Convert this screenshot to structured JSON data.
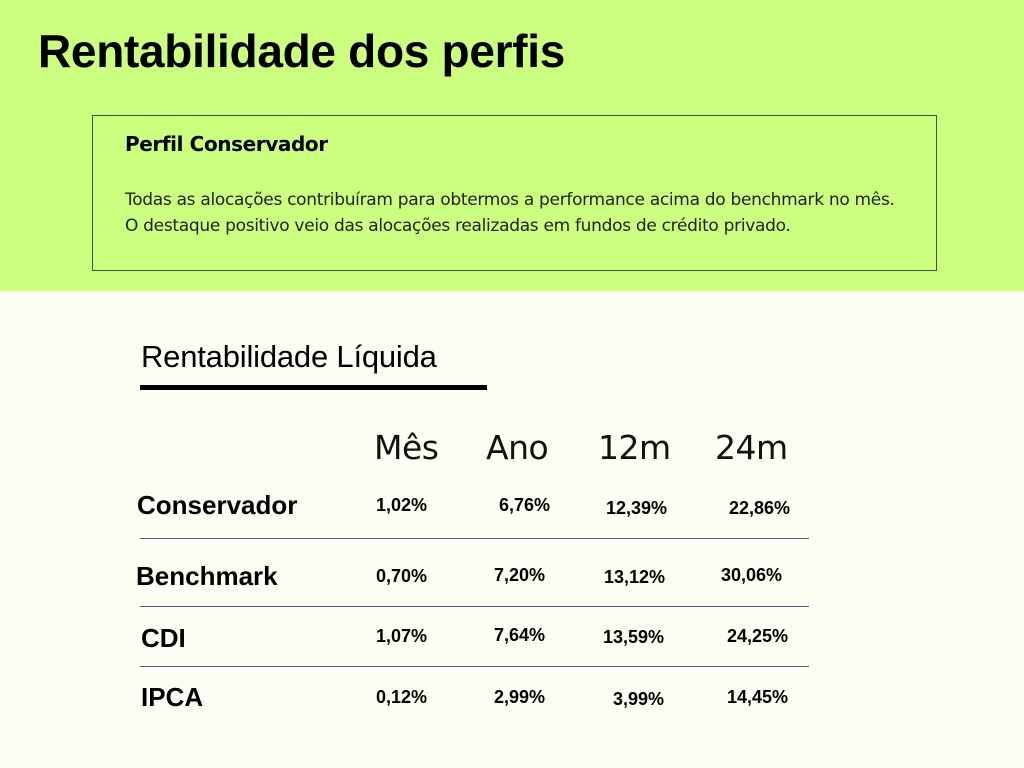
{
  "page": {
    "title": "Rentabilidade dos perfis"
  },
  "profile_box": {
    "heading": "Perfil Conservador",
    "text": "Todas as alocações contribuíram para obtermos a performance acima do benchmark no mês. O destaque positivo veio das alocações realizadas em fundos de crédito privado."
  },
  "section": {
    "title": "Rentabilidade Líquida"
  },
  "table": {
    "columns": [
      "Mês",
      "Ano",
      "12m",
      "24m"
    ],
    "rows": [
      {
        "label": "Conservador",
        "values": [
          "1,02%",
          "6,76%",
          "12,39%",
          "22,86%"
        ]
      },
      {
        "label": "Benchmark",
        "values": [
          "0,70%",
          "7,20%",
          "13,12%",
          "30,06%"
        ]
      },
      {
        "label": "CDI",
        "values": [
          "1,07%",
          "7,64%",
          "13,59%",
          "24,25%"
        ]
      },
      {
        "label": "IPCA",
        "values": [
          "0,12%",
          "2,99%",
          "3,99%",
          "14,45%"
        ]
      }
    ]
  },
  "colors": {
    "top_band": "#ccff80",
    "background": "#fcfdf3",
    "divider": "#4a5a8a"
  }
}
